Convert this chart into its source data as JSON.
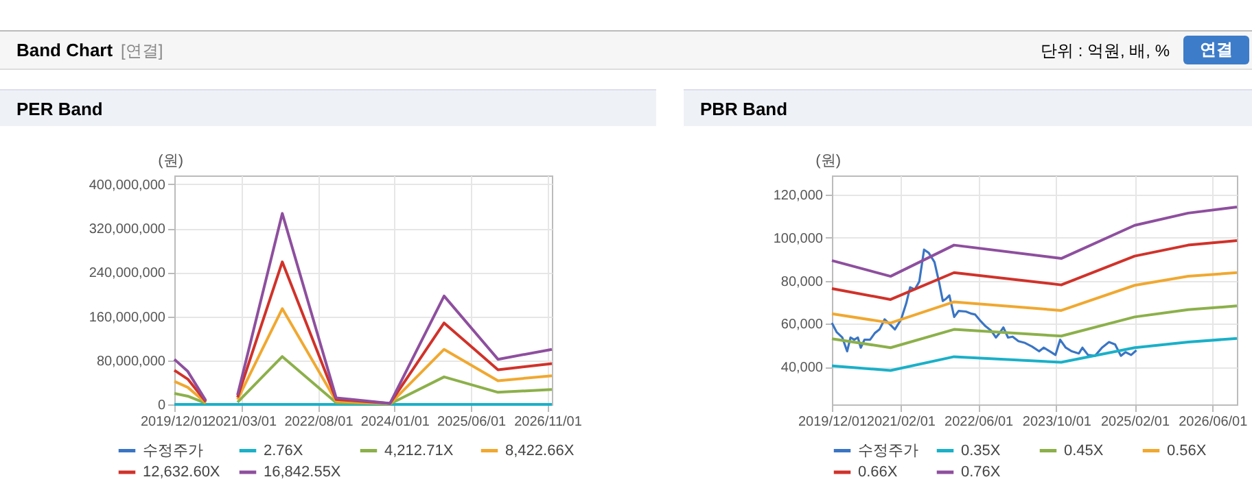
{
  "chart_data": [
    {
      "type": "line",
      "title": "PER Band",
      "ylabel": "(원)",
      "annotations": [
        "Band Chart",
        "[연결]",
        "단위 : 억원, 배, %",
        "연결"
      ],
      "x": [
        "2019-12-01",
        "2020-03-01",
        "2020-07-01",
        "2020-10-01",
        "2021-02-01",
        "2021-12-01",
        "2022-12-01",
        "2023-12-01",
        "2024-12-01",
        "2025-12-01",
        "2026-12-01"
      ],
      "xlim": [
        "2019-12-01",
        "2026-12-01"
      ],
      "xticks": [
        {
          "value": "2019-12-01",
          "label": "2019/12/01"
        },
        {
          "value": "2021-03-01",
          "label": "2021/03/01"
        },
        {
          "value": "2022-08-01",
          "label": "2022/08/01"
        },
        {
          "value": "2024-01-01",
          "label": "2024/01/01"
        },
        {
          "value": "2025-06-01",
          "label": "2025/06/01"
        },
        {
          "value": "2026-11-01",
          "label": "2026/11/01"
        }
      ],
      "ylim": [
        0,
        416000000
      ],
      "yticks": [
        0,
        {
          "value": 80000000,
          "label": "80,000,000"
        },
        {
          "value": 160000000,
          "label": "160,000,000"
        },
        {
          "value": 240000000,
          "label": "240,000,000"
        },
        {
          "value": 320000000,
          "label": "320,000,000"
        },
        {
          "value": 400000000,
          "label": "400,000,000"
        }
      ],
      "grid": true,
      "legend": "bottom",
      "series": [
        {
          "name": "수정주가",
          "color": "#3a75c4",
          "values": [
            null,
            null,
            null,
            null,
            null,
            null,
            null,
            null,
            null,
            null,
            null
          ]
        },
        {
          "name": "2.76X",
          "color": "#1ab0c8",
          "values": [
            0,
            0,
            0,
            0,
            0,
            0,
            0,
            0,
            0,
            0,
            0
          ]
        },
        {
          "name": "4,212.71X",
          "color": "#8cb04a",
          "values": [
            20000000,
            15000000,
            2000000,
            null,
            4000000,
            87000000,
            3000000,
            1000000,
            50000000,
            22000000,
            27000000
          ]
        },
        {
          "name": "8,422.66X",
          "color": "#f0a830",
          "values": [
            42000000,
            31000000,
            3000000,
            null,
            9000000,
            174000000,
            6000000,
            1000000,
            100000000,
            43000000,
            52000000
          ]
        },
        {
          "name": "12,632.60X",
          "color": "#d0322a",
          "values": [
            62000000,
            46000000,
            5000000,
            null,
            13000000,
            259000000,
            9000000,
            2000000,
            148000000,
            63000000,
            74000000
          ]
        },
        {
          "name": "16,842.55X",
          "color": "#8e4f9e",
          "values": [
            82000000,
            60000000,
            7000000,
            null,
            17000000,
            347000000,
            12000000,
            2000000,
            197000000,
            82000000,
            100000000
          ]
        }
      ]
    },
    {
      "type": "line",
      "title": "PBR Band",
      "ylabel": "(원)",
      "x": [
        "2019-12-01",
        "2020-12-01",
        "2022-01-01",
        "2023-11-01",
        "2025-02-01",
        "2026-01-01",
        "2026-11-01"
      ],
      "xlim": [
        "2019-12-01",
        "2026-11-01"
      ],
      "xticks": [
        {
          "value": "2019-12-01",
          "label": "2019/12/01"
        },
        {
          "value": "2021-02-01",
          "label": "2021/02/01"
        },
        {
          "value": "2022-06-01",
          "label": "2022/06/01"
        },
        {
          "value": "2023-10-01",
          "label": "2023/10/01"
        },
        {
          "value": "2025-02-01",
          "label": "2025/02/01"
        },
        {
          "value": "2026-06-01",
          "label": "2026/06/01"
        }
      ],
      "ylim": [
        22500,
        129000
      ],
      "yticks": [
        {
          "value": 40000,
          "label": "40,000"
        },
        {
          "value": 60000,
          "label": "60,000"
        },
        {
          "value": 80000,
          "label": "80,000"
        },
        {
          "value": 100000,
          "label": "100,000"
        },
        {
          "value": 120000,
          "label": "120,000"
        }
      ],
      "grid": true,
      "legend": "bottom",
      "series": [
        {
          "name": "수정주가",
          "color": "#3a75c4",
          "x": [
            "2019-12-01",
            "2019-12-30",
            "2020-02-04",
            "2020-03-05",
            "2020-03-26",
            "2020-04-18",
            "2020-05-11",
            "2020-05-29",
            "2020-06-21",
            "2020-07-26",
            "2020-08-25",
            "2020-09-23",
            "2020-10-25",
            "2020-11-29",
            "2020-12-28",
            "2021-02-05",
            "2021-03-09",
            "2021-04-02",
            "2021-05-01",
            "2021-05-29",
            "2021-06-28",
            "2021-07-27",
            "2021-09-01",
            "2021-09-30",
            "2021-10-23",
            "2021-11-13",
            "2021-12-03",
            "2022-01-02",
            "2022-01-30",
            "2022-03-16",
            "2022-04-20",
            "2022-05-13",
            "2022-06-18",
            "2022-07-16",
            "2022-08-21",
            "2022-09-19",
            "2022-10-12",
            "2022-11-05",
            "2022-12-04",
            "2023-01-02",
            "2023-02-07",
            "2023-03-20",
            "2023-05-03",
            "2023-06-16",
            "2023-07-14",
            "2023-08-22",
            "2023-09-26",
            "2023-10-25",
            "2023-11-29",
            "2024-01-06",
            "2024-02-19",
            "2024-03-12",
            "2024-04-16",
            "2024-05-30",
            "2024-07-12",
            "2024-08-25",
            "2024-10-02",
            "2024-11-07",
            "2024-12-06",
            "2025-01-10",
            "2025-02-12"
          ],
          "values": [
            60400,
            56200,
            53600,
            47200,
            53600,
            52600,
            53600,
            48900,
            52600,
            52600,
            55700,
            57400,
            62100,
            59600,
            57400,
            62100,
            69600,
            77000,
            76000,
            79600,
            94500,
            93000,
            88700,
            79200,
            70600,
            71700,
            73200,
            63200,
            66000,
            65700,
            64700,
            64300,
            61100,
            58900,
            56800,
            53600,
            55700,
            58300,
            53600,
            54000,
            51900,
            51100,
            49400,
            47200,
            48900,
            47200,
            45500,
            52600,
            48900,
            47200,
            46200,
            48900,
            45500,
            45100,
            48900,
            51500,
            50400,
            45100,
            46800,
            45500,
            47700
          ]
        },
        {
          "name": "0.35X",
          "color": "#1ab0c8",
          "values": [
            40400,
            38300,
            44700,
            42100,
            48900,
            51500,
            53200
          ]
        },
        {
          "name": "0.45X",
          "color": "#8cb04a",
          "values": [
            53000,
            48900,
            57400,
            54300,
            63200,
            66600,
            68300
          ]
        },
        {
          "name": "0.56X",
          "color": "#f0a830",
          "values": [
            64700,
            60400,
            70200,
            66200,
            77900,
            82100,
            83800
          ]
        },
        {
          "name": "0.66X",
          "color": "#d0322a",
          "values": [
            76400,
            71300,
            83800,
            78100,
            91500,
            96600,
            98700
          ]
        },
        {
          "name": "0.76X",
          "color": "#8e4f9e",
          "values": [
            89400,
            82100,
            96600,
            90400,
            105800,
            111500,
            114300
          ]
        }
      ]
    }
  ]
}
